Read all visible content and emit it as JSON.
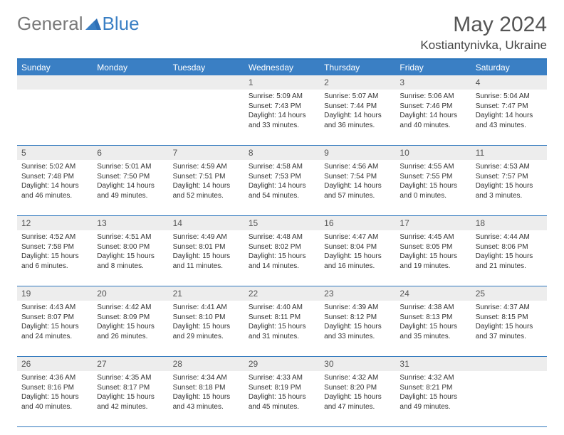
{
  "brand": {
    "part1": "General",
    "part2": "Blue"
  },
  "title": "May 2024",
  "location": "Kostiantynivka, Ukraine",
  "colors": {
    "header_bg": "#3a7fc4",
    "border": "#2e77bd",
    "daynum_bg": "#ededed",
    "text": "#333333",
    "title_text": "#555555"
  },
  "dayNames": [
    "Sunday",
    "Monday",
    "Tuesday",
    "Wednesday",
    "Thursday",
    "Friday",
    "Saturday"
  ],
  "weeks": [
    [
      {
        "n": "",
        "sr": "",
        "ss": "",
        "dl": ""
      },
      {
        "n": "",
        "sr": "",
        "ss": "",
        "dl": ""
      },
      {
        "n": "",
        "sr": "",
        "ss": "",
        "dl": ""
      },
      {
        "n": "1",
        "sr": "Sunrise: 5:09 AM",
        "ss": "Sunset: 7:43 PM",
        "dl": "Daylight: 14 hours and 33 minutes."
      },
      {
        "n": "2",
        "sr": "Sunrise: 5:07 AM",
        "ss": "Sunset: 7:44 PM",
        "dl": "Daylight: 14 hours and 36 minutes."
      },
      {
        "n": "3",
        "sr": "Sunrise: 5:06 AM",
        "ss": "Sunset: 7:46 PM",
        "dl": "Daylight: 14 hours and 40 minutes."
      },
      {
        "n": "4",
        "sr": "Sunrise: 5:04 AM",
        "ss": "Sunset: 7:47 PM",
        "dl": "Daylight: 14 hours and 43 minutes."
      }
    ],
    [
      {
        "n": "5",
        "sr": "Sunrise: 5:02 AM",
        "ss": "Sunset: 7:48 PM",
        "dl": "Daylight: 14 hours and 46 minutes."
      },
      {
        "n": "6",
        "sr": "Sunrise: 5:01 AM",
        "ss": "Sunset: 7:50 PM",
        "dl": "Daylight: 14 hours and 49 minutes."
      },
      {
        "n": "7",
        "sr": "Sunrise: 4:59 AM",
        "ss": "Sunset: 7:51 PM",
        "dl": "Daylight: 14 hours and 52 minutes."
      },
      {
        "n": "8",
        "sr": "Sunrise: 4:58 AM",
        "ss": "Sunset: 7:53 PM",
        "dl": "Daylight: 14 hours and 54 minutes."
      },
      {
        "n": "9",
        "sr": "Sunrise: 4:56 AM",
        "ss": "Sunset: 7:54 PM",
        "dl": "Daylight: 14 hours and 57 minutes."
      },
      {
        "n": "10",
        "sr": "Sunrise: 4:55 AM",
        "ss": "Sunset: 7:55 PM",
        "dl": "Daylight: 15 hours and 0 minutes."
      },
      {
        "n": "11",
        "sr": "Sunrise: 4:53 AM",
        "ss": "Sunset: 7:57 PM",
        "dl": "Daylight: 15 hours and 3 minutes."
      }
    ],
    [
      {
        "n": "12",
        "sr": "Sunrise: 4:52 AM",
        "ss": "Sunset: 7:58 PM",
        "dl": "Daylight: 15 hours and 6 minutes."
      },
      {
        "n": "13",
        "sr": "Sunrise: 4:51 AM",
        "ss": "Sunset: 8:00 PM",
        "dl": "Daylight: 15 hours and 8 minutes."
      },
      {
        "n": "14",
        "sr": "Sunrise: 4:49 AM",
        "ss": "Sunset: 8:01 PM",
        "dl": "Daylight: 15 hours and 11 minutes."
      },
      {
        "n": "15",
        "sr": "Sunrise: 4:48 AM",
        "ss": "Sunset: 8:02 PM",
        "dl": "Daylight: 15 hours and 14 minutes."
      },
      {
        "n": "16",
        "sr": "Sunrise: 4:47 AM",
        "ss": "Sunset: 8:04 PM",
        "dl": "Daylight: 15 hours and 16 minutes."
      },
      {
        "n": "17",
        "sr": "Sunrise: 4:45 AM",
        "ss": "Sunset: 8:05 PM",
        "dl": "Daylight: 15 hours and 19 minutes."
      },
      {
        "n": "18",
        "sr": "Sunrise: 4:44 AM",
        "ss": "Sunset: 8:06 PM",
        "dl": "Daylight: 15 hours and 21 minutes."
      }
    ],
    [
      {
        "n": "19",
        "sr": "Sunrise: 4:43 AM",
        "ss": "Sunset: 8:07 PM",
        "dl": "Daylight: 15 hours and 24 minutes."
      },
      {
        "n": "20",
        "sr": "Sunrise: 4:42 AM",
        "ss": "Sunset: 8:09 PM",
        "dl": "Daylight: 15 hours and 26 minutes."
      },
      {
        "n": "21",
        "sr": "Sunrise: 4:41 AM",
        "ss": "Sunset: 8:10 PM",
        "dl": "Daylight: 15 hours and 29 minutes."
      },
      {
        "n": "22",
        "sr": "Sunrise: 4:40 AM",
        "ss": "Sunset: 8:11 PM",
        "dl": "Daylight: 15 hours and 31 minutes."
      },
      {
        "n": "23",
        "sr": "Sunrise: 4:39 AM",
        "ss": "Sunset: 8:12 PM",
        "dl": "Daylight: 15 hours and 33 minutes."
      },
      {
        "n": "24",
        "sr": "Sunrise: 4:38 AM",
        "ss": "Sunset: 8:13 PM",
        "dl": "Daylight: 15 hours and 35 minutes."
      },
      {
        "n": "25",
        "sr": "Sunrise: 4:37 AM",
        "ss": "Sunset: 8:15 PM",
        "dl": "Daylight: 15 hours and 37 minutes."
      }
    ],
    [
      {
        "n": "26",
        "sr": "Sunrise: 4:36 AM",
        "ss": "Sunset: 8:16 PM",
        "dl": "Daylight: 15 hours and 40 minutes."
      },
      {
        "n": "27",
        "sr": "Sunrise: 4:35 AM",
        "ss": "Sunset: 8:17 PM",
        "dl": "Daylight: 15 hours and 42 minutes."
      },
      {
        "n": "28",
        "sr": "Sunrise: 4:34 AM",
        "ss": "Sunset: 8:18 PM",
        "dl": "Daylight: 15 hours and 43 minutes."
      },
      {
        "n": "29",
        "sr": "Sunrise: 4:33 AM",
        "ss": "Sunset: 8:19 PM",
        "dl": "Daylight: 15 hours and 45 minutes."
      },
      {
        "n": "30",
        "sr": "Sunrise: 4:32 AM",
        "ss": "Sunset: 8:20 PM",
        "dl": "Daylight: 15 hours and 47 minutes."
      },
      {
        "n": "31",
        "sr": "Sunrise: 4:32 AM",
        "ss": "Sunset: 8:21 PM",
        "dl": "Daylight: 15 hours and 49 minutes."
      },
      {
        "n": "",
        "sr": "",
        "ss": "",
        "dl": ""
      }
    ]
  ]
}
